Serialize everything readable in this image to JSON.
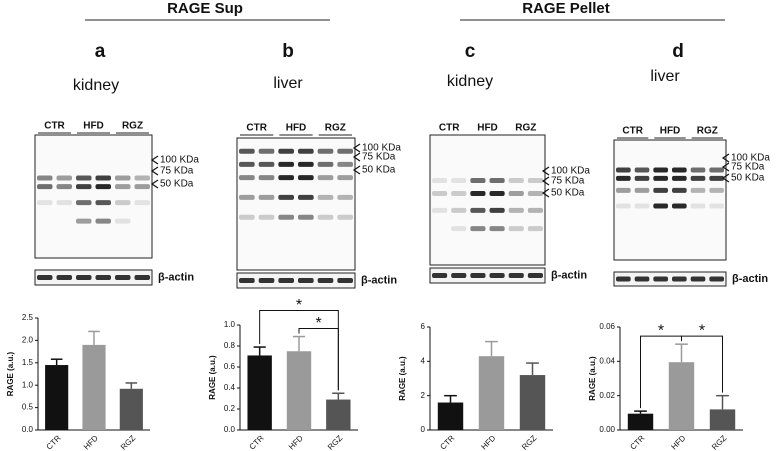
{
  "headers": [
    "RAGE Sup",
    "RAGE Pellet"
  ],
  "panels": [
    {
      "letter": "a",
      "tissue": "kidney",
      "lanes": [
        "CTR",
        "HFD",
        "RGZ"
      ],
      "markers": [
        "100 KDa",
        "75 KDa",
        "50 KDa"
      ],
      "loading_control": "β-actin"
    },
    {
      "letter": "b",
      "tissue": "liver",
      "lanes": [
        "CTR",
        "HFD",
        "RGZ"
      ],
      "markers": [
        "100 KDa",
        "75 KDa",
        "50 KDa"
      ],
      "loading_control": "β-actin"
    },
    {
      "letter": "c",
      "tissue": "kidney",
      "lanes": [
        "CTR",
        "HFD",
        "RGZ"
      ],
      "markers": [
        "100 KDa",
        "75 KDa",
        "50 KDa"
      ],
      "loading_control": "β-actin"
    },
    {
      "letter": "d",
      "tissue": "liver",
      "lanes": [
        "CTR",
        "HFD",
        "RGZ"
      ],
      "markers": [
        "100 KDa",
        "75 KDa",
        "50 KDa"
      ],
      "loading_control": "β-actin"
    }
  ],
  "chart_data": [
    {
      "type": "bar",
      "ylabel": "RAGE (a.u.)",
      "categories": [
        "CTR",
        "HFD",
        "RGZ"
      ],
      "values": [
        1.45,
        1.9,
        0.92
      ],
      "errors": [
        0.13,
        0.3,
        0.13
      ],
      "colors": [
        "#111111",
        "#9a9a9a",
        "#555555"
      ],
      "ylim": [
        0,
        2.5
      ],
      "yticks": [
        {
          "value": 0,
          "label": "0.0"
        },
        0.5,
        {
          "value": 1,
          "label": "1.0"
        },
        1.5,
        {
          "value": 2,
          "label": "2.0"
        },
        2.5
      ],
      "significance": []
    },
    {
      "type": "bar",
      "ylabel": "RAGE (a.u.)",
      "categories": [
        "CTR",
        "HFD",
        "RGZ"
      ],
      "values": [
        0.71,
        0.75,
        0.29
      ],
      "errors": [
        0.08,
        0.14,
        0.06
      ],
      "colors": [
        "#111111",
        "#9a9a9a",
        "#555555"
      ],
      "ylim": [
        0,
        1
      ],
      "yticks": [
        {
          "value": 0,
          "label": "0.0"
        },
        0.2,
        0.4,
        0.6,
        0.8,
        {
          "value": 1,
          "label": "1.0"
        }
      ],
      "significance": [
        {
          "between": [
            "CTR",
            "RGZ"
          ],
          "label": "*"
        },
        {
          "between": [
            "HFD",
            "RGZ"
          ],
          "label": "*"
        }
      ]
    },
    {
      "type": "bar",
      "ylabel": "RAGE (a.u.)",
      "categories": [
        "CTR",
        "HFD",
        "RGZ"
      ],
      "values": [
        1.6,
        4.3,
        3.2
      ],
      "errors": [
        0.4,
        0.85,
        0.7
      ],
      "colors": [
        "#111111",
        "#9a9a9a",
        "#555555"
      ],
      "ylim": [
        0,
        6
      ],
      "yticks": [
        0,
        2,
        4,
        6
      ],
      "significance": []
    },
    {
      "type": "bar",
      "ylabel": "RAGE (a.u.)",
      "categories": [
        "CTR",
        "HFD",
        "RGZ"
      ],
      "values": [
        0.0095,
        0.0395,
        0.012
      ],
      "errors": [
        0.0015,
        0.0105,
        0.008
      ],
      "colors": [
        "#111111",
        "#9a9a9a",
        "#555555"
      ],
      "ylim": [
        0,
        0.06
      ],
      "yticks": [
        {
          "value": 0,
          "label": "0.00"
        },
        {
          "value": 0.02,
          "label": "0.02"
        },
        {
          "value": 0.04,
          "label": "0.04"
        },
        {
          "value": 0.06,
          "label": "0.06"
        }
      ],
      "significance": [
        {
          "between": [
            "CTR",
            "HFD"
          ],
          "label": "*"
        },
        {
          "between": [
            "HFD",
            "RGZ"
          ],
          "label": "*"
        }
      ]
    }
  ]
}
